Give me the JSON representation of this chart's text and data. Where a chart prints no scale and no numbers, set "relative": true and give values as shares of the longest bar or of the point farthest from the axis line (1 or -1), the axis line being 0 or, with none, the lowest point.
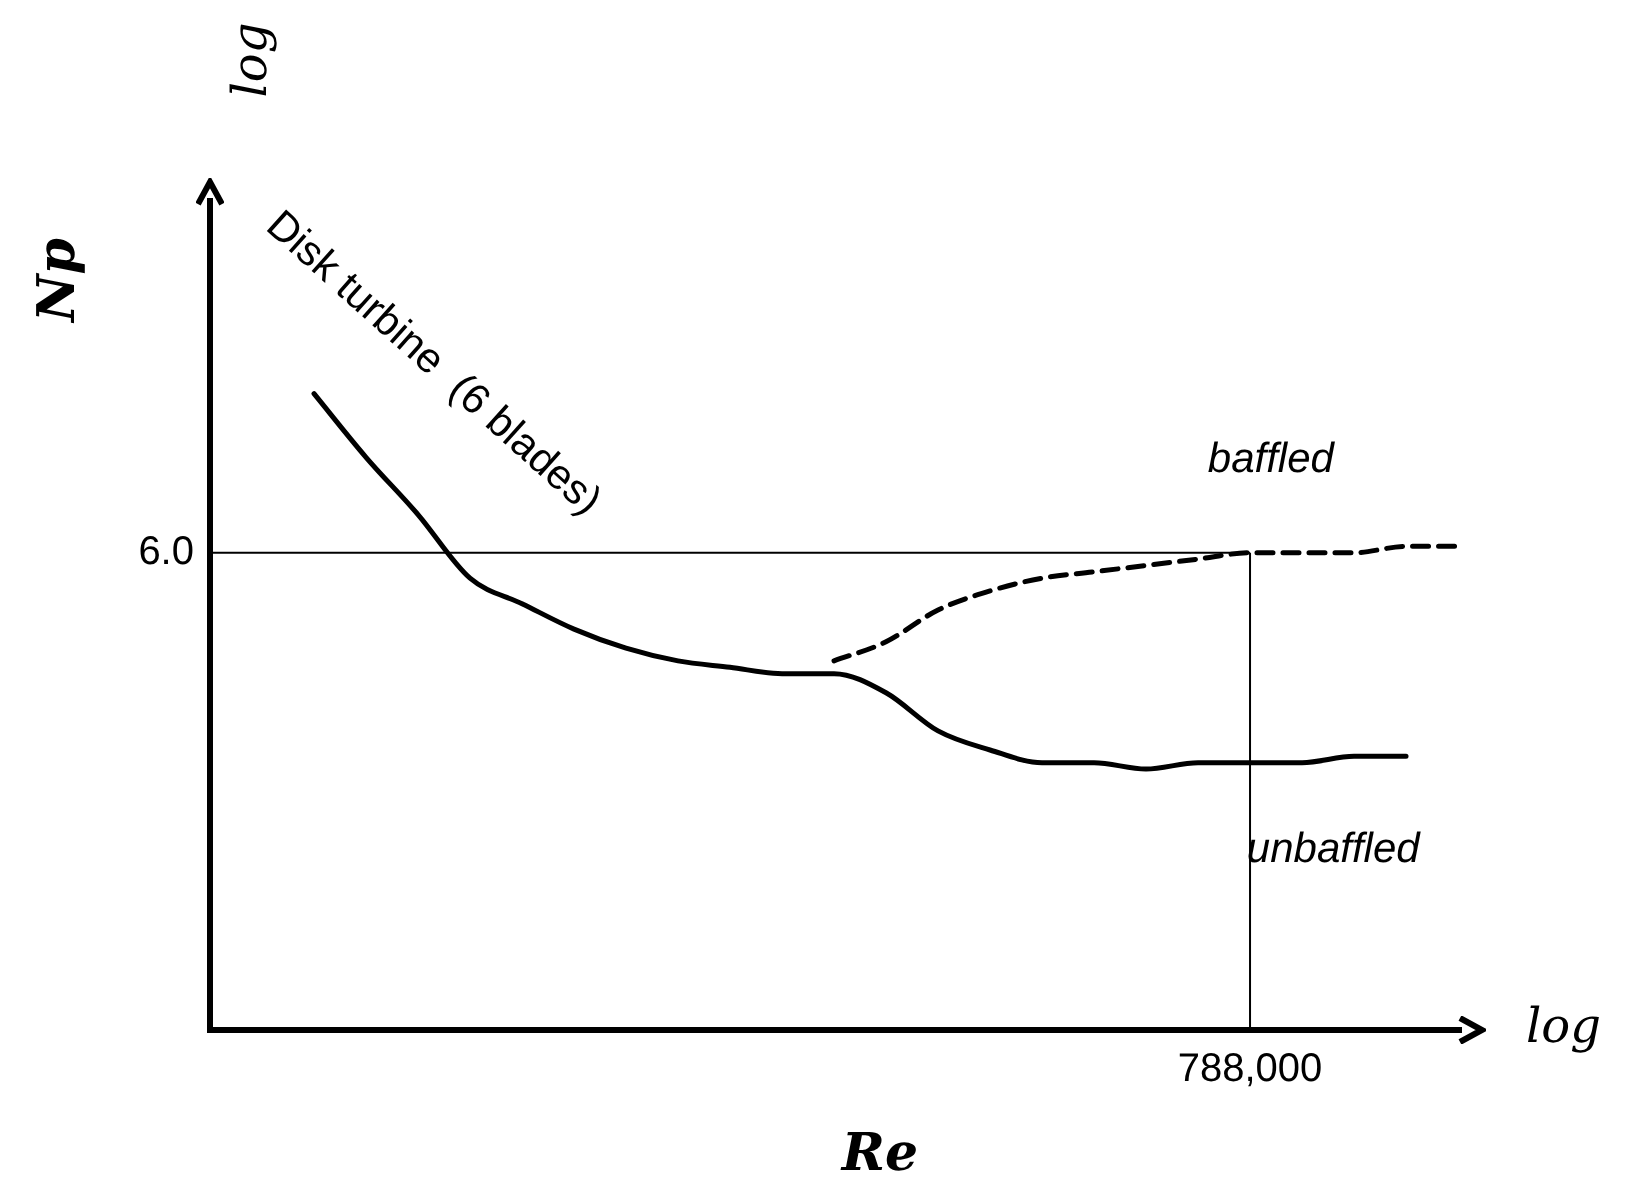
{
  "chart_data": {
    "type": "line",
    "relative": true,
    "xlabel": "Re",
    "ylabel": "Np",
    "categories": [
      null,
      null,
      null,
      null,
      null,
      null,
      null,
      null,
      null,
      null,
      null,
      null,
      null,
      null,
      null,
      null,
      null,
      null,
      null,
      null,
      null,
      null,
      null
    ],
    "series": [
      {
        "name": "unbaffled",
        "color": "#000000",
        "line_style": "solid",
        "values": [
          1.0,
          0.9,
          0.81,
          0.71,
          0.67,
          0.63,
          0.6,
          0.58,
          0.57,
          0.56,
          0.56,
          0.53,
          0.47,
          0.44,
          0.42,
          0.42,
          0.41,
          0.42,
          0.42,
          0.42,
          0.43,
          0.43,
          null
        ]
      },
      {
        "name": "baffled",
        "color": "#000000",
        "line_style": "dashed",
        "values": [
          null,
          null,
          null,
          null,
          null,
          null,
          null,
          null,
          null,
          null,
          0.58,
          0.61,
          0.66,
          0.69,
          0.71,
          0.72,
          0.73,
          0.74,
          0.75,
          0.75,
          0.75,
          0.76,
          0.76
        ]
      }
    ],
    "ref_lines": [
      {
        "axis": "y",
        "value": 0.75
      }
    ],
    "annotations": [
      "6.0",
      "788,000",
      "Disk turbine  (6 blades)",
      "log",
      "log"
    ],
    "legend": false,
    "marker": "none"
  }
}
